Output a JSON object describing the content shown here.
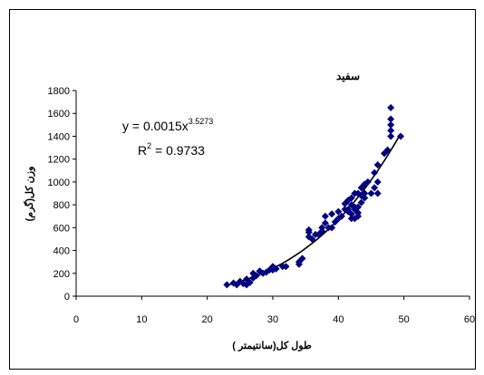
{
  "chart_data": {
    "type": "scatter",
    "title": "سفید",
    "xlabel": "طول کل(سانتیمتر )",
    "ylabel": "وزن کل(گرم)",
    "xlim": [
      0,
      60
    ],
    "ylim": [
      0,
      1800
    ],
    "x_ticks": [
      0,
      10,
      20,
      30,
      40,
      50,
      60
    ],
    "y_ticks": [
      0,
      200,
      400,
      600,
      800,
      1000,
      1200,
      1400,
      1600,
      1800
    ],
    "grid": false,
    "legend": "none",
    "marker": "diamond",
    "marker_color": "#000080",
    "trendline": {
      "type": "power",
      "a": 0.0015,
      "b": 3.5273,
      "x_range": [
        23,
        49.5
      ],
      "equation_prefix": "y = 0.0015x",
      "equation_exponent": "3.5273",
      "r2_prefix": "R",
      "r2_exponent": "2",
      "r2_suffix": " = 0.9733",
      "color": "#000000"
    },
    "points": [
      [
        23,
        100
      ],
      [
        24,
        115
      ],
      [
        24.5,
        100
      ],
      [
        25,
        130
      ],
      [
        25.5,
        110
      ],
      [
        26,
        150
      ],
      [
        26,
        100
      ],
      [
        26.5,
        120
      ],
      [
        27,
        160
      ],
      [
        27,
        200
      ],
      [
        27.5,
        180
      ],
      [
        28,
        220
      ],
      [
        28.5,
        200
      ],
      [
        29,
        210
      ],
      [
        29.5,
        230
      ],
      [
        30,
        230
      ],
      [
        30,
        260
      ],
      [
        30.5,
        240
      ],
      [
        31.5,
        260
      ],
      [
        32,
        260
      ],
      [
        34,
        280
      ],
      [
        34,
        300
      ],
      [
        34.5,
        330
      ],
      [
        35.5,
        520
      ],
      [
        35.5,
        560
      ],
      [
        35.5,
        580
      ],
      [
        36,
        500
      ],
      [
        36.5,
        540
      ],
      [
        37,
        540
      ],
      [
        37.5,
        570
      ],
      [
        37.5,
        600
      ],
      [
        38,
        640
      ],
      [
        38,
        700
      ],
      [
        38.5,
        600
      ],
      [
        39,
        600
      ],
      [
        39,
        720
      ],
      [
        39.5,
        650
      ],
      [
        40,
        680
      ],
      [
        40.5,
        700
      ],
      [
        41,
        760
      ],
      [
        41,
        810
      ],
      [
        41.5,
        760
      ],
      [
        41.5,
        840
      ],
      [
        41.5,
        740
      ],
      [
        42,
        680
      ],
      [
        42,
        720
      ],
      [
        42,
        800
      ],
      [
        42,
        860
      ],
      [
        42.5,
        680
      ],
      [
        42.5,
        760
      ],
      [
        42.5,
        900
      ],
      [
        42.5,
        780
      ],
      [
        43,
        700
      ],
      [
        43,
        730
      ],
      [
        43,
        780
      ],
      [
        43,
        900
      ],
      [
        43.5,
        820
      ],
      [
        43.5,
        880
      ],
      [
        43.5,
        950
      ],
      [
        44,
        860
      ],
      [
        44,
        900
      ],
      [
        44,
        980
      ],
      [
        44.5,
        1000
      ],
      [
        45,
        900
      ],
      [
        45.5,
        950
      ],
      [
        46,
        900
      ],
      [
        46,
        1000
      ],
      [
        46,
        1150
      ],
      [
        47,
        1250
      ],
      [
        48,
        1400
      ],
      [
        48,
        1450
      ],
      [
        48,
        1500
      ],
      [
        48,
        1650
      ],
      [
        48,
        1550
      ],
      [
        49.5,
        1400
      ],
      [
        47.5,
        1280
      ],
      [
        45.5,
        1080
      ],
      [
        40,
        740
      ]
    ]
  }
}
